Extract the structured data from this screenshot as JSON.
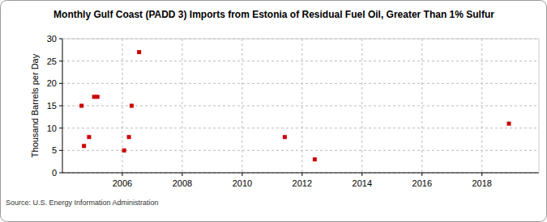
{
  "chart_data": {
    "type": "scatter",
    "title": "Monthly Gulf Coast (PADD 3) Imports from Estonia of Residual Fuel Oil, Greater Than 1% Sulfur",
    "y_label": "Thousand Barrels per Day",
    "source": "Source: U.S. Energy Information Administration",
    "x": [
      2004.64,
      2004.72,
      2004.89,
      2005.06,
      2005.17,
      2006.06,
      2006.22,
      2006.31,
      2006.56,
      2011.42,
      2012.42,
      2018.9
    ],
    "values": [
      15,
      6,
      8,
      17,
      17,
      5,
      8,
      15,
      27,
      8,
      3,
      11
    ],
    "color": "#cc0000",
    "marker": "square",
    "xlim": [
      2004,
      2019.9
    ],
    "xticks": [
      2006,
      2008,
      2010,
      2012,
      2014,
      2016,
      2018
    ],
    "ylim": [
      0,
      30
    ],
    "yticks": [
      0,
      5,
      10,
      15,
      20,
      25,
      30
    ],
    "grid": true
  }
}
